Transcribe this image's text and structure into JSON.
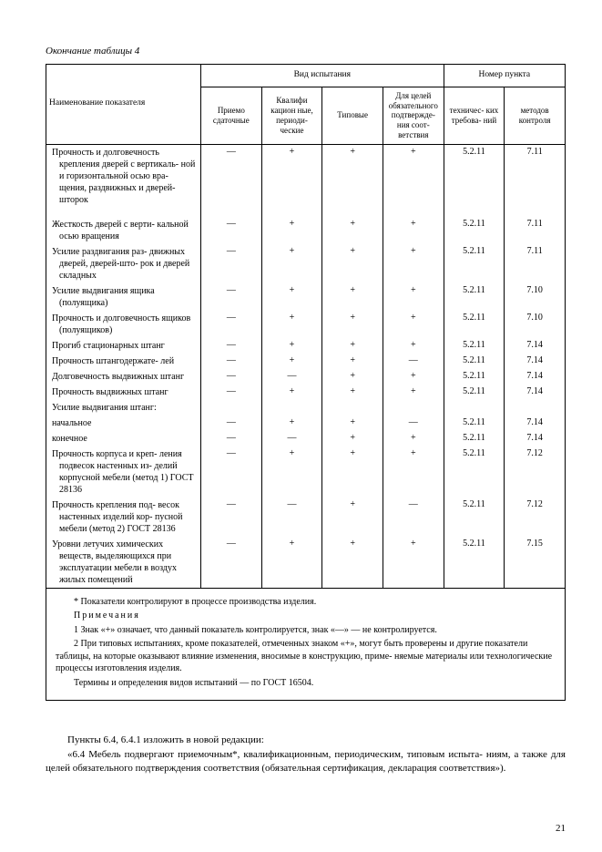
{
  "caption": "Окончание таблицы 4",
  "headers": {
    "name": "Наименование показателя",
    "tests_group": "Вид испытания",
    "point_group": "Номер пункта",
    "priem": "Приемо сдаточные",
    "kval": "Квалифи кацион ные, периоди- ческие",
    "tip": "Типовые",
    "obz": "Для целей обязательного подтвержде- ния соот- ветствия",
    "tech": "техничес- ких требова- ний",
    "meth": "методов контроля"
  },
  "rows": [
    {
      "name": "Прочность и долговечность крепления дверей с вертикаль- ной и горизонтальной осью вра- щения, раздвижных и дверей- шторок",
      "v": [
        "—",
        "+",
        "+",
        "+",
        "5.2.11",
        "7.11"
      ]
    },
    {
      "name": "",
      "v": [
        "",
        "",
        "",
        "",
        "",
        ""
      ],
      "spacer": true
    },
    {
      "name": "Жесткость дверей с верти- кальной осью вращения",
      "v": [
        "—",
        "+",
        "+",
        "+",
        "5.2.11",
        "7.11"
      ]
    },
    {
      "name": "Усилие раздвигания раз- движных дверей, дверей-што- рок и дверей складных",
      "v": [
        "—",
        "+",
        "+",
        "+",
        "5.2.11",
        "7.11"
      ]
    },
    {
      "name": "Усилие выдвигания ящика (полуящика)",
      "v": [
        "—",
        "+",
        "+",
        "+",
        "5.2.11",
        "7.10"
      ]
    },
    {
      "name": "Прочность и долговечность ящиков (полуящиков)",
      "v": [
        "—",
        "+",
        "+",
        "+",
        "5.2.11",
        "7.10"
      ]
    },
    {
      "name": "Прогиб стационарных штанг",
      "v": [
        "—",
        "+",
        "+",
        "+",
        "5.2.11",
        "7.14"
      ]
    },
    {
      "name": "Прочность штангодержате- лей",
      "v": [
        "—",
        "+",
        "+",
        "—",
        "5.2.11",
        "7.14"
      ]
    },
    {
      "name": "Долговечность выдвижных штанг",
      "v": [
        "—",
        "—",
        "+",
        "+",
        "5.2.11",
        "7.14"
      ]
    },
    {
      "name": "Прочность выдвижных штанг",
      "v": [
        "—",
        "+",
        "+",
        "+",
        "5.2.11",
        "7.14"
      ]
    },
    {
      "name": "Усилие выдвигания штанг:",
      "v": [
        "",
        "",
        "",
        "",
        "",
        ""
      ]
    },
    {
      "name": "  начальное",
      "v": [
        "—",
        "+",
        "+",
        "—",
        "5.2.11",
        "7.14"
      ]
    },
    {
      "name": "  конечное",
      "v": [
        "—",
        "—",
        "+",
        "+",
        "5.2.11",
        "7.14"
      ]
    },
    {
      "name": "Прочность корпуса и креп- ления подвесок настенных из- делий корпусной мебели (метод 1) ГОСТ 28136",
      "v": [
        "—",
        "+",
        "+",
        "+",
        "5.2.11",
        "7.12"
      ]
    },
    {
      "name": "Прочность крепления под- весок настенных изделий кор- пусной мебели (метод 2) ГОСТ 28136",
      "v": [
        "—",
        "—",
        "+",
        "—",
        "5.2.11",
        "7.12"
      ]
    },
    {
      "name": "Уровни летучих химических веществ, выделяющихся при эксплуатации мебели в воздух жилых помещений",
      "v": [
        "—",
        "+",
        "+",
        "+",
        "5.2.11",
        "7.15"
      ]
    }
  ],
  "notes": {
    "star": "* Показатели контролируют в процессе производства изделия.",
    "label": "Примечания",
    "n1": "1 Знак «+» означает, что данный показатель контролируется, знак «—» — не контролируется.",
    "n2": "2 При типовых испытаниях, кроме показателей, отмеченных знаком «+», могут быть проверены и другие показатели таблицы, на которые оказывают влияние изменения, вносимые в конструкцию, приме- няемые материалы или технологические процессы изготовления изделия.",
    "n3": "Термины и определения видов испытаний — по ГОСТ 16504."
  },
  "after": {
    "p1": "Пункты 6.4, 6.4.1 изложить в новой редакции:",
    "p2": "«6.4 Мебель подвергают приемочным*, квалификационным, периодическим, типовым испыта- ниям, а также для целей обязательного подтверждения соответствия (обязательная сертификация, декларация соответствия»)."
  },
  "page_number": "21"
}
